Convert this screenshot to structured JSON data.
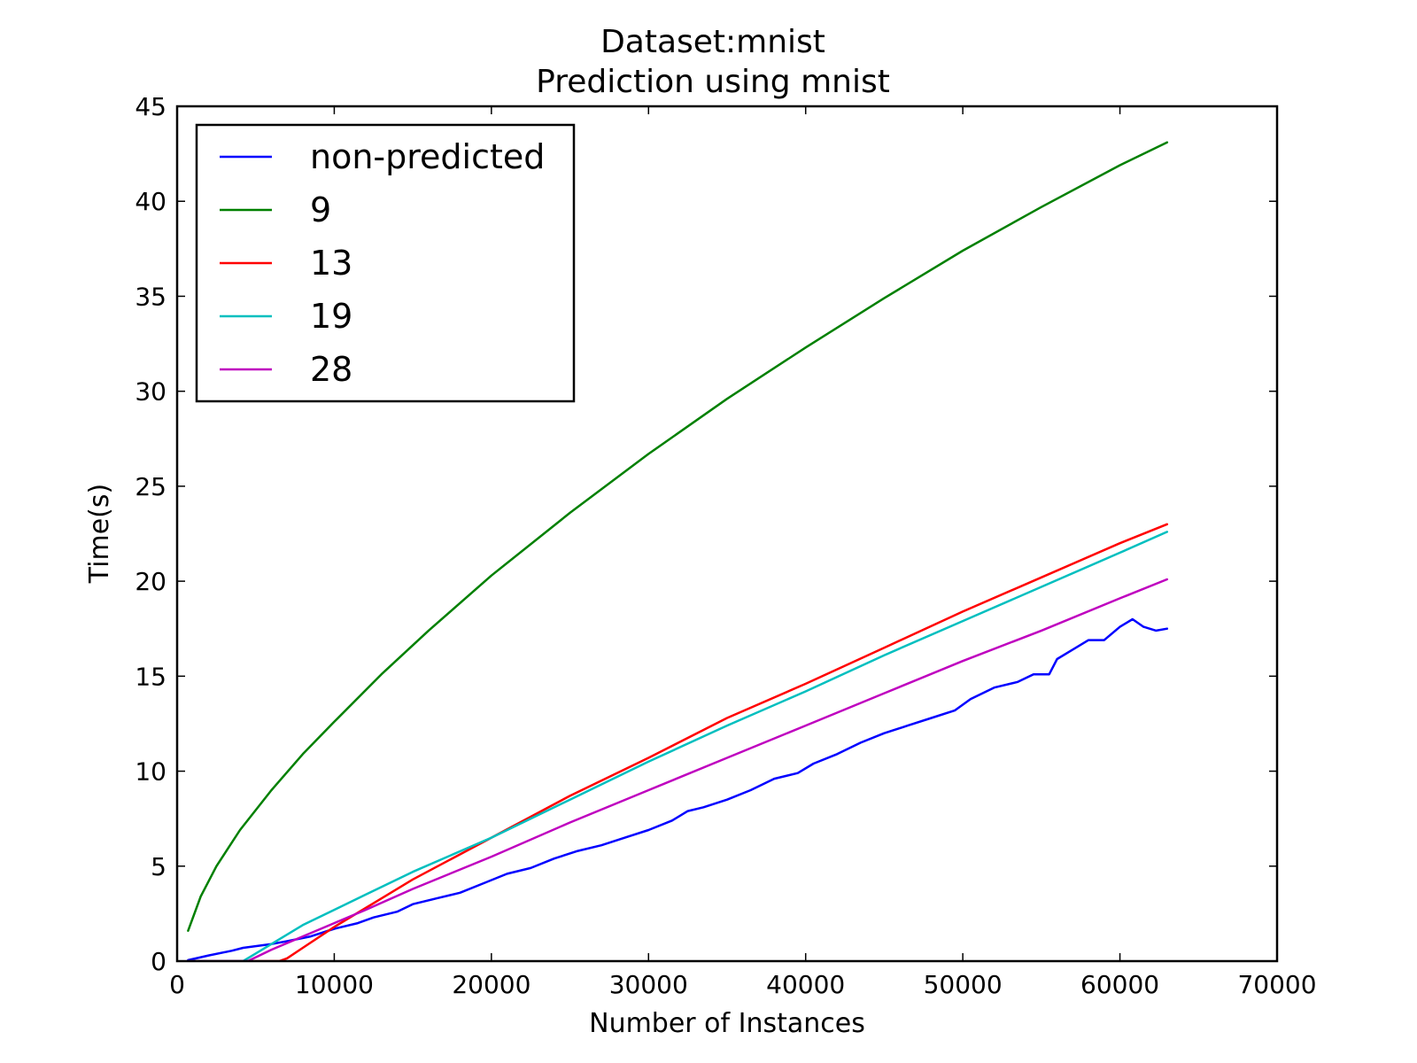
{
  "chart_data": {
    "type": "line",
    "title": "Dataset:mnist",
    "subtitle": "Prediction using mnist",
    "xlabel": "Number of Instances",
    "ylabel": "Time(s)",
    "xlim": [
      0,
      70000
    ],
    "ylim": [
      0,
      45
    ],
    "xticks": [
      0,
      10000,
      20000,
      30000,
      40000,
      50000,
      60000,
      70000
    ],
    "yticks": [
      0,
      5,
      10,
      15,
      20,
      25,
      30,
      35,
      40,
      45
    ],
    "grid": false,
    "legend_position": "top-left",
    "series": [
      {
        "name": "non-predicted",
        "color": "#0000ff",
        "x": [
          700,
          2000,
          3500,
          4200,
          6000,
          7000,
          8500,
          10000,
          11500,
          12500,
          14000,
          15000,
          16500,
          18000,
          19500,
          21000,
          22500,
          24000,
          25500,
          27000,
          28500,
          30000,
          31500,
          32500,
          33500,
          35000,
          36500,
          38000,
          39500,
          40500,
          42000,
          43500,
          45000,
          46500,
          48000,
          49500,
          50500,
          52000,
          53500,
          54500,
          55500,
          56000,
          57000,
          58000,
          59000,
          60000,
          60800,
          61500,
          62300,
          63000
        ],
        "values": [
          0.05,
          0.3,
          0.55,
          0.7,
          0.9,
          1.05,
          1.3,
          1.7,
          2.0,
          2.3,
          2.6,
          3.0,
          3.3,
          3.6,
          4.1,
          4.6,
          4.9,
          5.4,
          5.8,
          6.1,
          6.5,
          6.9,
          7.4,
          7.9,
          8.1,
          8.5,
          9.0,
          9.6,
          9.9,
          10.4,
          10.9,
          11.5,
          12.0,
          12.4,
          12.8,
          13.2,
          13.8,
          14.4,
          14.7,
          15.1,
          15.1,
          15.9,
          16.4,
          16.9,
          16.9,
          17.6,
          18.0,
          17.6,
          17.4,
          17.5
        ]
      },
      {
        "name": "9",
        "color": "#008000",
        "x": [
          700,
          1500,
          2500,
          4000,
          6000,
          8000,
          10000,
          13000,
          16000,
          20000,
          25000,
          30000,
          35000,
          40000,
          45000,
          50000,
          55000,
          60000,
          63000
        ],
        "values": [
          1.6,
          3.4,
          5.0,
          6.9,
          9.0,
          10.9,
          12.6,
          15.1,
          17.4,
          20.3,
          23.6,
          26.7,
          29.6,
          32.3,
          34.9,
          37.4,
          39.7,
          41.9,
          43.1
        ]
      },
      {
        "name": "13",
        "color": "#ff0000",
        "x": [
          700,
          6500,
          7000,
          8000,
          10000,
          12000,
          15000,
          20000,
          25000,
          30000,
          35000,
          40000,
          45000,
          50000,
          55000,
          60000,
          63000
        ],
        "values": [
          0.0,
          0.0,
          0.15,
          0.7,
          1.8,
          2.8,
          4.3,
          6.5,
          8.7,
          10.7,
          12.8,
          14.6,
          16.5,
          18.4,
          20.2,
          22.0,
          23.0
        ]
      },
      {
        "name": "19",
        "color": "#00bfbf",
        "x": [
          700,
          4200,
          5000,
          6000,
          8000,
          10000,
          12000,
          15000,
          20000,
          25000,
          30000,
          35000,
          40000,
          45000,
          50000,
          55000,
          60000,
          63000
        ],
        "values": [
          0.0,
          0.0,
          0.4,
          0.9,
          1.9,
          2.7,
          3.5,
          4.7,
          6.5,
          8.5,
          10.5,
          12.4,
          14.2,
          16.1,
          17.9,
          19.7,
          21.5,
          22.6
        ]
      },
      {
        "name": "28",
        "color": "#bf00bf",
        "x": [
          700,
          4500,
          6000,
          8000,
          10000,
          12000,
          15000,
          20000,
          25000,
          30000,
          35000,
          40000,
          45000,
          50000,
          55000,
          60000,
          63000
        ],
        "values": [
          0.0,
          0.0,
          0.6,
          1.3,
          2.0,
          2.7,
          3.8,
          5.5,
          7.3,
          9.0,
          10.7,
          12.4,
          14.1,
          15.8,
          17.4,
          19.1,
          20.1
        ]
      }
    ]
  }
}
